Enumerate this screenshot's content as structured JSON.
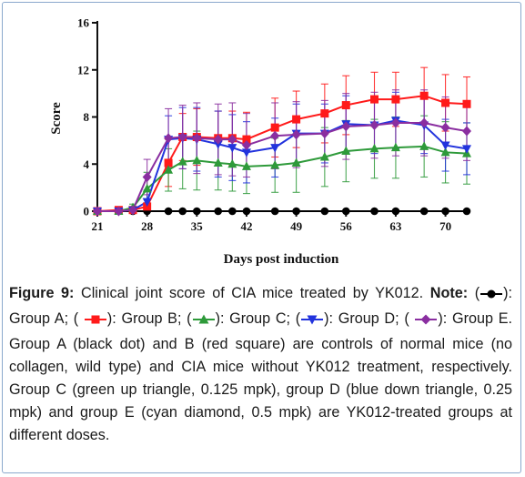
{
  "chart_data": {
    "type": "line",
    "xlabel": "Days post induction",
    "ylabel": "Score",
    "xlim": [
      21,
      73
    ],
    "ylim": [
      0,
      16
    ],
    "x_ticks": [
      21,
      28,
      35,
      42,
      49,
      56,
      63,
      70
    ],
    "y_ticks": [
      0,
      4,
      8,
      12,
      16
    ],
    "x": [
      21,
      24,
      26,
      28,
      31,
      33,
      35,
      38,
      40,
      42,
      46,
      49,
      53,
      56,
      60,
      63,
      67,
      70,
      73
    ],
    "series": [
      {
        "name": "Group A",
        "marker": "circle",
        "color": "#000000",
        "values": [
          0,
          0,
          0,
          0,
          0,
          0,
          0,
          0,
          0,
          0,
          0,
          0,
          0,
          0,
          0,
          0,
          0,
          0,
          0
        ],
        "errors": [
          0,
          0,
          0,
          0,
          0,
          0,
          0,
          0,
          0,
          0,
          0,
          0,
          0,
          0,
          0,
          0,
          0,
          0,
          0
        ]
      },
      {
        "name": "Group B",
        "marker": "square",
        "color": "#ff1a1a",
        "values": [
          0,
          0.1,
          0.1,
          0.4,
          4.1,
          6.3,
          6.3,
          6.2,
          6.2,
          6.1,
          7.1,
          7.8,
          8.3,
          9.0,
          9.5,
          9.5,
          9.8,
          9.2,
          9.1
        ],
        "errors": [
          0,
          0,
          0.2,
          0.6,
          2.0,
          2.0,
          2.4,
          2.3,
          2.3,
          2.3,
          2.5,
          2.4,
          2.5,
          2.5,
          2.3,
          2.3,
          2.4,
          2.4,
          2.3
        ]
      },
      {
        "name": "Group C",
        "marker": "triangle-up",
        "color": "#2e9a3a",
        "values": [
          0,
          0,
          0.3,
          1.9,
          3.5,
          4.2,
          4.3,
          4.1,
          4.0,
          3.8,
          3.9,
          4.1,
          4.6,
          5.1,
          5.3,
          5.4,
          5.5,
          5.0,
          4.9
        ],
        "errors": [
          0,
          0,
          0.3,
          1.4,
          1.8,
          2.3,
          2.5,
          2.3,
          2.3,
          2.3,
          2.3,
          2.5,
          2.5,
          2.6,
          2.5,
          2.6,
          2.6,
          2.6,
          2.6
        ]
      },
      {
        "name": "Group D",
        "marker": "triangle-down",
        "color": "#2233dd",
        "values": [
          0,
          0,
          0.1,
          0.8,
          6.1,
          6.2,
          6.1,
          5.7,
          5.4,
          5.0,
          5.4,
          6.6,
          6.6,
          7.4,
          7.3,
          7.7,
          7.3,
          5.6,
          5.3
        ],
        "errors": [
          0,
          0,
          0.2,
          1.0,
          2.0,
          2.6,
          2.7,
          2.8,
          2.8,
          2.6,
          2.5,
          2.5,
          2.5,
          2.4,
          2.4,
          2.4,
          2.4,
          2.2,
          2.2
        ]
      },
      {
        "name": "Group E",
        "marker": "diamond",
        "color": "#8a2ea0",
        "values": [
          0,
          0,
          0.1,
          2.9,
          6.2,
          6.3,
          6.2,
          6.1,
          6.1,
          5.6,
          6.4,
          6.5,
          6.6,
          7.2,
          7.3,
          7.5,
          7.5,
          7.1,
          6.8
        ],
        "errors": [
          0,
          0,
          0.2,
          1.5,
          2.5,
          2.7,
          3.0,
          3.0,
          3.1,
          2.7,
          2.8,
          2.8,
          2.8,
          2.8,
          2.8,
          2.8,
          2.8,
          2.6,
          2.5
        ]
      }
    ]
  },
  "caption": {
    "figure_label": "Figure 9:",
    "part1": " Clinical joint score of CIA mice treated by YK012. ",
    "note_label": "Note:",
    "item_a": "): Group A; (",
    "item_b": "): Group B; (",
    "item_c": "): Group C; (",
    "item_d": "): Group D; (",
    "item_e": "): Group E.",
    "body": " Group A (black dot) and B (red square) are controls of normal mice (no collagen, wild type) and CIA mice without YK012 treatment, respectively. Group C (green up triangle, 0.125 mpk), group D (blue down triangle, 0.25 mpk) and group E (cyan diamond, 0.5 mpk) are YK012-treated groups at different doses."
  }
}
